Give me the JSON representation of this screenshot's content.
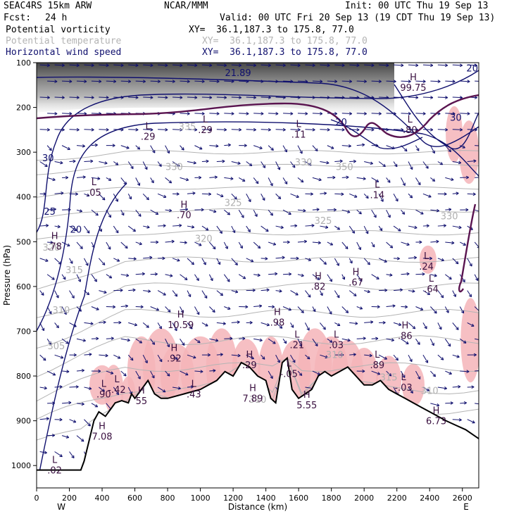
{
  "header": {
    "model": "SEAC4RS 15km ARW",
    "org": "NCAR/MMM",
    "init": "Init: 00 UTC Thu 19 Sep 13",
    "fcst_label": "Fcst:",
    "fcst_value": "24 h",
    "valid": "Valid: 00 UTC Fri 20 Sep 13 (19 CDT Thu 19 Sep 13)"
  },
  "fields": [
    {
      "name": "Potential vorticity",
      "xy": "XY=  36.1,187.3 to 175.8, 77.0",
      "color": "#000000"
    },
    {
      "name": "Potential temperature",
      "xy": "XY=  36.1,187.3 to 175.8, 77.0",
      "color": "#b4b4b4"
    },
    {
      "name": "Horizontal wind speed",
      "xy": "XY=  36.1,187.3 to 175.8, 77.0",
      "color": "#10106e"
    }
  ],
  "chart_data": {
    "type": "cross-section",
    "xlabel": "Distance (km)",
    "ylabel": "Pressure (hPa)",
    "xlim": [
      0,
      2700
    ],
    "ylim": [
      1050,
      100
    ],
    "x_ticks": [
      0,
      200,
      400,
      600,
      800,
      1000,
      1200,
      1400,
      1600,
      1800,
      2000,
      2200,
      2400,
      2600
    ],
    "y_ticks": [
      100,
      200,
      300,
      400,
      500,
      600,
      700,
      800,
      900,
      1000
    ],
    "x_end_labels": {
      "left": "W",
      "right": "E"
    },
    "colors": {
      "pv": "#5a1450",
      "theta": "#b4b4b4",
      "wind": "#10106e",
      "terrain": "#000000",
      "shade": "#f4b4b8"
    },
    "terrain": [
      [
        0,
        1010
      ],
      [
        270,
        1010
      ],
      [
        290,
        990
      ],
      [
        330,
        930
      ],
      [
        350,
        900
      ],
      [
        380,
        880
      ],
      [
        420,
        890
      ],
      [
        460,
        870
      ],
      [
        480,
        860
      ],
      [
        520,
        855
      ],
      [
        560,
        860
      ],
      [
        580,
        840
      ],
      [
        600,
        850
      ],
      [
        640,
        830
      ],
      [
        680,
        810
      ],
      [
        720,
        840
      ],
      [
        760,
        850
      ],
      [
        800,
        850
      ],
      [
        900,
        840
      ],
      [
        1000,
        830
      ],
      [
        1050,
        820
      ],
      [
        1100,
        810
      ],
      [
        1150,
        790
      ],
      [
        1200,
        800
      ],
      [
        1250,
        770
      ],
      [
        1300,
        780
      ],
      [
        1350,
        800
      ],
      [
        1400,
        810
      ],
      [
        1430,
        850
      ],
      [
        1460,
        860
      ],
      [
        1500,
        770
      ],
      [
        1530,
        760
      ],
      [
        1560,
        830
      ],
      [
        1600,
        850
      ],
      [
        1640,
        840
      ],
      [
        1680,
        830
      ],
      [
        1720,
        800
      ],
      [
        1760,
        790
      ],
      [
        1800,
        800
      ],
      [
        1850,
        790
      ],
      [
        1900,
        780
      ],
      [
        1950,
        800
      ],
      [
        2000,
        820
      ],
      [
        2050,
        820
      ],
      [
        2100,
        810
      ],
      [
        2150,
        830
      ],
      [
        2200,
        840
      ],
      [
        2250,
        850
      ],
      [
        2300,
        860
      ],
      [
        2350,
        870
      ],
      [
        2400,
        880
      ],
      [
        2450,
        890
      ],
      [
        2500,
        900
      ],
      [
        2560,
        910
      ],
      [
        2620,
        920
      ],
      [
        2700,
        940
      ]
    ],
    "theta_labels": [
      {
        "x": 1020,
        "p": 500,
        "v": "320"
      },
      {
        "x": 230,
        "p": 570,
        "v": "315"
      },
      {
        "x": 150,
        "p": 660,
        "v": "310"
      },
      {
        "x": 120,
        "p": 740,
        "v": "305"
      },
      {
        "x": 1200,
        "p": 420,
        "v": "325"
      },
      {
        "x": 1750,
        "p": 460,
        "v": "325"
      },
      {
        "x": 840,
        "p": 340,
        "v": "330"
      },
      {
        "x": 1630,
        "p": 330,
        "v": "330"
      },
      {
        "x": 2520,
        "p": 450,
        "v": "330"
      },
      {
        "x": 920,
        "p": 250,
        "v": "335"
      },
      {
        "x": 1880,
        "p": 340,
        "v": "350"
      },
      {
        "x": 90,
        "p": 520,
        "v": "320"
      },
      {
        "x": 1350,
        "p": 860,
        "v": "310"
      },
      {
        "x": 1820,
        "p": 760,
        "v": "310"
      },
      {
        "x": 2400,
        "p": 840,
        "v": "310"
      },
      {
        "x": 2150,
        "p": 810,
        "v": "315"
      }
    ],
    "wind_labels": [
      {
        "x": 70,
        "p": 320,
        "v": "30"
      },
      {
        "x": 80,
        "p": 440,
        "v": "25"
      },
      {
        "x": 240,
        "p": 480,
        "v": "20"
      },
      {
        "x": 1230,
        "p": 130,
        "v": "21.89"
      },
      {
        "x": 1860,
        "p": 240,
        "v": "20"
      },
      {
        "x": 2560,
        "p": 230,
        "v": "30"
      },
      {
        "x": 2660,
        "p": 120,
        "v": "20"
      }
    ],
    "extrema": [
      {
        "x": 350,
        "p": 385,
        "t": "L",
        "v": ".05"
      },
      {
        "x": 110,
        "p": 505,
        "t": "H",
        "v": ".78"
      },
      {
        "x": 680,
        "p": 260,
        "t": "L",
        "v": ".29"
      },
      {
        "x": 1030,
        "p": 245,
        "t": "L",
        "v": ".29"
      },
      {
        "x": 900,
        "p": 435,
        "t": "H",
        "v": ".70"
      },
      {
        "x": 1600,
        "p": 255,
        "t": "L",
        "v": ".11"
      },
      {
        "x": 2080,
        "p": 390,
        "t": "L",
        "v": ".14"
      },
      {
        "x": 2300,
        "p": 150,
        "t": "H",
        "v": "99.75"
      },
      {
        "x": 2280,
        "p": 245,
        "t": "L",
        "v": ".80"
      },
      {
        "x": 1720,
        "p": 595,
        "t": "H",
        "v": ".82"
      },
      {
        "x": 1950,
        "p": 585,
        "t": "H",
        "v": ".67"
      },
      {
        "x": 2380,
        "p": 550,
        "t": "L",
        "v": ".24"
      },
      {
        "x": 2410,
        "p": 600,
        "t": "L",
        "v": ".64"
      },
      {
        "x": 880,
        "p": 680,
        "t": "H",
        "v": "10.59"
      },
      {
        "x": 1470,
        "p": 675,
        "t": "H",
        "v": ".98"
      },
      {
        "x": 1590,
        "p": 725,
        "t": "L",
        "v": ".21"
      },
      {
        "x": 1830,
        "p": 725,
        "t": "L",
        "v": ".03"
      },
      {
        "x": 2250,
        "p": 705,
        "t": "H",
        "v": ".86"
      },
      {
        "x": 840,
        "p": 755,
        "t": "H",
        "v": ".92"
      },
      {
        "x": 1300,
        "p": 770,
        "t": "H",
        "v": ".29"
      },
      {
        "x": 2080,
        "p": 770,
        "t": "L",
        "v": ".89"
      },
      {
        "x": 1540,
        "p": 790,
        "t": "L",
        "v": "-.05"
      },
      {
        "x": 490,
        "p": 825,
        "t": "L",
        "v": "-.42"
      },
      {
        "x": 410,
        "p": 835,
        "t": "L",
        "v": ".90"
      },
      {
        "x": 960,
        "p": 835,
        "t": "L",
        "v": ".43"
      },
      {
        "x": 1320,
        "p": 845,
        "t": "H",
        "v": "7.89"
      },
      {
        "x": 640,
        "p": 850,
        "t": "H",
        "v": "55"
      },
      {
        "x": 1650,
        "p": 860,
        "t": "H",
        "v": "5.55"
      },
      {
        "x": 2240,
        "p": 820,
        "t": "L",
        "v": "-.03"
      },
      {
        "x": 2440,
        "p": 895,
        "t": "H",
        "v": "6.73"
      },
      {
        "x": 400,
        "p": 930,
        "t": "H",
        "v": "7.08"
      },
      {
        "x": 110,
        "p": 1005,
        "t": "L",
        "v": ".02"
      }
    ]
  }
}
